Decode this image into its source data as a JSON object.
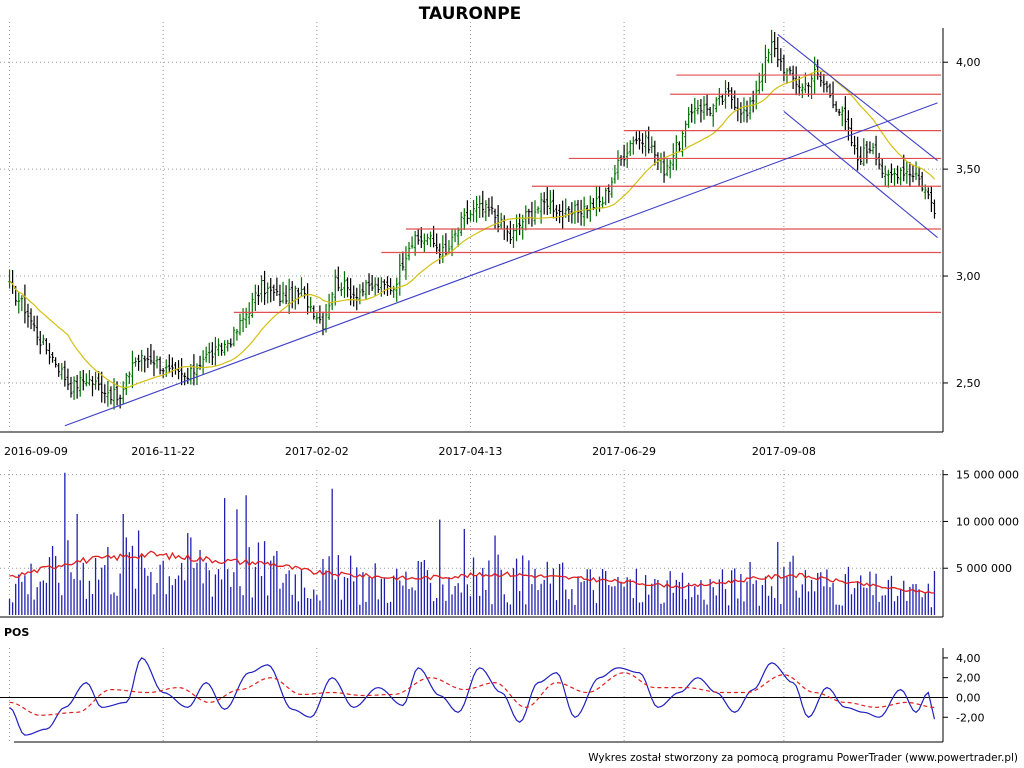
{
  "chart_data": [
    {
      "type": "candlestick",
      "title": "TAURONPE",
      "x_tick_labels": [
        "2016-09-09",
        "2016-11-22",
        "2017-02-02",
        "2017-04-13",
        "2017-06-29",
        "2017-09-08"
      ],
      "y_ticks": [
        2.5,
        3.0,
        3.5,
        4.0
      ],
      "y_tick_labels": [
        "2,50",
        "3,00",
        "3,50",
        "4,00"
      ],
      "ylim": [
        2.28,
        4.16
      ],
      "grid": true,
      "bar_count": 302,
      "close_anchors": [
        {
          "bar": 0,
          "value": 2.95
        },
        {
          "bar": 5,
          "value": 2.85
        },
        {
          "bar": 10,
          "value": 2.7
        },
        {
          "bar": 15,
          "value": 2.6
        },
        {
          "bar": 20,
          "value": 2.48
        },
        {
          "bar": 25,
          "value": 2.52
        },
        {
          "bar": 30,
          "value": 2.48
        },
        {
          "bar": 36,
          "value": 2.42
        },
        {
          "bar": 40,
          "value": 2.6
        },
        {
          "bar": 46,
          "value": 2.62
        },
        {
          "bar": 52,
          "value": 2.55
        },
        {
          "bar": 58,
          "value": 2.52
        },
        {
          "bar": 63,
          "value": 2.62
        },
        {
          "bar": 68,
          "value": 2.65
        },
        {
          "bar": 73,
          "value": 2.72
        },
        {
          "bar": 78,
          "value": 2.85
        },
        {
          "bar": 82,
          "value": 2.95
        },
        {
          "bar": 88,
          "value": 2.9
        },
        {
          "bar": 95,
          "value": 2.92
        },
        {
          "bar": 102,
          "value": 2.78
        },
        {
          "bar": 106,
          "value": 2.98
        },
        {
          "bar": 112,
          "value": 2.92
        },
        {
          "bar": 118,
          "value": 2.95
        },
        {
          "bar": 125,
          "value": 2.95
        },
        {
          "bar": 130,
          "value": 3.15
        },
        {
          "bar": 136,
          "value": 3.18
        },
        {
          "bar": 142,
          "value": 3.1
        },
        {
          "bar": 147,
          "value": 3.25
        },
        {
          "bar": 152,
          "value": 3.32
        },
        {
          "bar": 157,
          "value": 3.3
        },
        {
          "bar": 163,
          "value": 3.18
        },
        {
          "bar": 168,
          "value": 3.28
        },
        {
          "bar": 175,
          "value": 3.35
        },
        {
          "bar": 181,
          "value": 3.28
        },
        {
          "bar": 187,
          "value": 3.32
        },
        {
          "bar": 193,
          "value": 3.35
        },
        {
          "bar": 198,
          "value": 3.52
        },
        {
          "bar": 203,
          "value": 3.65
        },
        {
          "bar": 208,
          "value": 3.62
        },
        {
          "bar": 213,
          "value": 3.5
        },
        {
          "bar": 218,
          "value": 3.62
        },
        {
          "bar": 223,
          "value": 3.8
        },
        {
          "bar": 228,
          "value": 3.78
        },
        {
          "bar": 234,
          "value": 3.85
        },
        {
          "bar": 240,
          "value": 3.75
        },
        {
          "bar": 244,
          "value": 3.92
        },
        {
          "bar": 248,
          "value": 4.08
        },
        {
          "bar": 253,
          "value": 3.95
        },
        {
          "bar": 258,
          "value": 3.88
        },
        {
          "bar": 262,
          "value": 3.95
        },
        {
          "bar": 266,
          "value": 3.88
        },
        {
          "bar": 271,
          "value": 3.75
        },
        {
          "bar": 276,
          "value": 3.55
        },
        {
          "bar": 281,
          "value": 3.62
        },
        {
          "bar": 285,
          "value": 3.45
        },
        {
          "bar": 290,
          "value": 3.5
        },
        {
          "bar": 295,
          "value": 3.48
        },
        {
          "bar": 301,
          "value": 3.32
        }
      ],
      "moving_average": {
        "period": 20,
        "color": "#d4c010"
      },
      "trend_lines": [
        {
          "from": {
            "bar": 18,
            "value": 2.3
          },
          "to": {
            "bar": 302,
            "value": 3.81
          },
          "color": "#4040c8"
        },
        {
          "from": {
            "bar": 250,
            "value": 4.13
          },
          "to": {
            "bar": 302,
            "value": 3.54
          },
          "color": "#4040c8"
        },
        {
          "from": {
            "bar": 252,
            "value": 3.77
          },
          "to": {
            "bar": 302,
            "value": 3.18
          },
          "color": "#4040c8"
        }
      ],
      "horizontal_levels": [
        {
          "value": 3.94,
          "from_bar": 217
        },
        {
          "value": 3.85,
          "from_bar": 215
        },
        {
          "value": 3.68,
          "from_bar": 200
        },
        {
          "value": 3.55,
          "from_bar": 182
        },
        {
          "value": 3.42,
          "from_bar": 170
        },
        {
          "value": 3.22,
          "from_bar": 129
        },
        {
          "value": 3.11,
          "from_bar": 121
        },
        {
          "value": 2.83,
          "from_bar": 73
        }
      ],
      "level_color": "#e05050",
      "candle_up_color": "#007000",
      "candle_down_color": "#000000"
    },
    {
      "type": "bar",
      "name": "volume",
      "y_ticks": [
        5000000,
        10000000,
        15000000
      ],
      "y_tick_labels": [
        "5 000 000",
        "10 000 000",
        "15 000 000"
      ],
      "ylim": [
        0,
        15500000
      ],
      "bar_color": "#2020b0",
      "average_color": "#e02020",
      "average_anchors": [
        {
          "bar": 0,
          "value": 4000000
        },
        {
          "bar": 20,
          "value": 5700000
        },
        {
          "bar": 45,
          "value": 6500000
        },
        {
          "bar": 70,
          "value": 5800000
        },
        {
          "bar": 85,
          "value": 5500000
        },
        {
          "bar": 100,
          "value": 4500000
        },
        {
          "bar": 130,
          "value": 3900000
        },
        {
          "bar": 160,
          "value": 4400000
        },
        {
          "bar": 190,
          "value": 3800000
        },
        {
          "bar": 220,
          "value": 3000000
        },
        {
          "bar": 240,
          "value": 3800000
        },
        {
          "bar": 255,
          "value": 4300000
        },
        {
          "bar": 275,
          "value": 3400000
        },
        {
          "bar": 290,
          "value": 2700000
        },
        {
          "bar": 301,
          "value": 2400000
        }
      ],
      "spikes": [
        {
          "bar": 18,
          "value": 15200000
        },
        {
          "bar": 22,
          "value": 10800000
        },
        {
          "bar": 37,
          "value": 10800000
        },
        {
          "bar": 70,
          "value": 12500000
        },
        {
          "bar": 74,
          "value": 11300000
        },
        {
          "bar": 77,
          "value": 12800000
        },
        {
          "bar": 105,
          "value": 13500000
        },
        {
          "bar": 140,
          "value": 10200000
        },
        {
          "bar": 148,
          "value": 9200000
        },
        {
          "bar": 158,
          "value": 8500000
        },
        {
          "bar": 250,
          "value": 7800000
        },
        {
          "bar": 301,
          "value": 4700000
        }
      ]
    },
    {
      "type": "line",
      "name": "POS",
      "label": "POS",
      "y_ticks": [
        4,
        2,
        0,
        -2
      ],
      "y_tick_labels": [
        "4,00",
        "2,00",
        "0,00",
        "-2,00"
      ],
      "ylim": [
        -4.5,
        5
      ],
      "zero_line": true,
      "series": [
        {
          "color": "#2020c0",
          "style": "solid",
          "anchors": [
            {
              "bar": 0,
              "value": -1.0
            },
            {
              "bar": 5,
              "value": -3.8
            },
            {
              "bar": 12,
              "value": -3.2
            },
            {
              "bar": 18,
              "value": -1.0
            },
            {
              "bar": 25,
              "value": 1.5
            },
            {
              "bar": 30,
              "value": -1.0
            },
            {
              "bar": 38,
              "value": -0.5
            },
            {
              "bar": 43,
              "value": 4.0
            },
            {
              "bar": 50,
              "value": 0.5
            },
            {
              "bar": 58,
              "value": -1.0
            },
            {
              "bar": 64,
              "value": 1.5
            },
            {
              "bar": 70,
              "value": -1.2
            },
            {
              "bar": 78,
              "value": 2.5
            },
            {
              "bar": 84,
              "value": 3.3
            },
            {
              "bar": 92,
              "value": -1.2
            },
            {
              "bar": 98,
              "value": -2.0
            },
            {
              "bar": 105,
              "value": 2.0
            },
            {
              "bar": 112,
              "value": -1.0
            },
            {
              "bar": 120,
              "value": 1.0
            },
            {
              "bar": 128,
              "value": -0.8
            },
            {
              "bar": 133,
              "value": 3.0
            },
            {
              "bar": 140,
              "value": 0.2
            },
            {
              "bar": 146,
              "value": -1.5
            },
            {
              "bar": 153,
              "value": 3.0
            },
            {
              "bar": 160,
              "value": 0.5
            },
            {
              "bar": 166,
              "value": -2.5
            },
            {
              "bar": 172,
              "value": 1.5
            },
            {
              "bar": 178,
              "value": 2.5
            },
            {
              "bar": 184,
              "value": -2.0
            },
            {
              "bar": 192,
              "value": 2.0
            },
            {
              "bar": 198,
              "value": 3.0
            },
            {
              "bar": 205,
              "value": 2.5
            },
            {
              "bar": 211,
              "value": -1.0
            },
            {
              "bar": 218,
              "value": 0.5
            },
            {
              "bar": 224,
              "value": 2.0
            },
            {
              "bar": 230,
              "value": 0.5
            },
            {
              "bar": 236,
              "value": -1.5
            },
            {
              "bar": 242,
              "value": 0.8
            },
            {
              "bar": 248,
              "value": 3.5
            },
            {
              "bar": 255,
              "value": 1.5
            },
            {
              "bar": 260,
              "value": -2.0
            },
            {
              "bar": 266,
              "value": 1.0
            },
            {
              "bar": 272,
              "value": -1.0
            },
            {
              "bar": 278,
              "value": -1.5
            },
            {
              "bar": 283,
              "value": -2.0
            },
            {
              "bar": 290,
              "value": 0.8
            },
            {
              "bar": 295,
              "value": -1.5
            },
            {
              "bar": 299,
              "value": 0.5
            },
            {
              "bar": 301,
              "value": -2.2
            }
          ]
        },
        {
          "color": "#e02020",
          "style": "dashed",
          "anchors": [
            {
              "bar": 0,
              "value": -0.5
            },
            {
              "bar": 10,
              "value": -1.8
            },
            {
              "bar": 22,
              "value": -1.5
            },
            {
              "bar": 33,
              "value": 0.8
            },
            {
              "bar": 45,
              "value": 0.5
            },
            {
              "bar": 55,
              "value": 1.0
            },
            {
              "bar": 65,
              "value": -0.5
            },
            {
              "bar": 75,
              "value": 0.8
            },
            {
              "bar": 85,
              "value": 2.0
            },
            {
              "bar": 95,
              "value": 0.3
            },
            {
              "bar": 105,
              "value": 0.5
            },
            {
              "bar": 115,
              "value": 0.2
            },
            {
              "bar": 125,
              "value": 0.3
            },
            {
              "bar": 137,
              "value": 2.0
            },
            {
              "bar": 148,
              "value": 0.8
            },
            {
              "bar": 158,
              "value": 1.5
            },
            {
              "bar": 168,
              "value": -1.0
            },
            {
              "bar": 178,
              "value": 1.5
            },
            {
              "bar": 188,
              "value": 0.5
            },
            {
              "bar": 200,
              "value": 2.5
            },
            {
              "bar": 210,
              "value": 1.0
            },
            {
              "bar": 220,
              "value": 1.0
            },
            {
              "bar": 232,
              "value": 0.5
            },
            {
              "bar": 240,
              "value": 0.5
            },
            {
              "bar": 252,
              "value": 2.3
            },
            {
              "bar": 262,
              "value": 0.5
            },
            {
              "bar": 272,
              "value": -0.5
            },
            {
              "bar": 282,
              "value": -1.0
            },
            {
              "bar": 292,
              "value": -0.5
            },
            {
              "bar": 301,
              "value": -1.0
            }
          ]
        }
      ]
    }
  ],
  "footer": {
    "text": "Wykres został stworzony za pomocą programu PowerTrader (www.powertrader.pl)"
  }
}
